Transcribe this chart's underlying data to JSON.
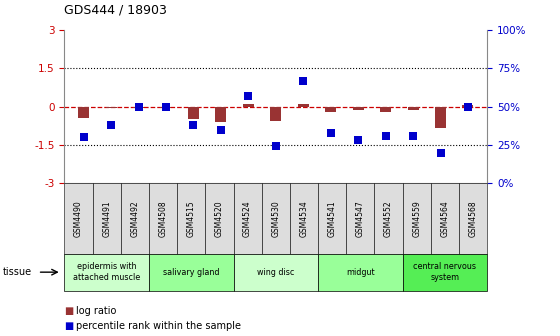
{
  "title": "GDS444 / 18903",
  "samples": [
    "GSM4490",
    "GSM4491",
    "GSM4492",
    "GSM4508",
    "GSM4515",
    "GSM4520",
    "GSM4524",
    "GSM4530",
    "GSM4534",
    "GSM4541",
    "GSM4547",
    "GSM4552",
    "GSM4559",
    "GSM4564",
    "GSM4568"
  ],
  "log_ratio": [
    -0.45,
    -0.05,
    -0.05,
    -0.05,
    -0.5,
    -0.6,
    0.1,
    -0.58,
    0.1,
    -0.2,
    -0.12,
    -0.2,
    -0.12,
    -0.85,
    0.05
  ],
  "percentile": [
    30,
    38,
    50,
    50,
    38,
    35,
    57,
    24,
    67,
    33,
    28,
    31,
    31,
    20,
    50
  ],
  "ylim_left": [
    -3,
    3
  ],
  "ylim_right": [
    0,
    100
  ],
  "dotted_lines": [
    1.5,
    -1.5
  ],
  "zero_line_color": "#cc0000",
  "bar_color": "#993333",
  "dot_color": "#0000cc",
  "tissue_groups": [
    {
      "label": "epidermis with\nattached muscle",
      "start": 0,
      "end": 2,
      "color": "#ccffcc"
    },
    {
      "label": "salivary gland",
      "start": 3,
      "end": 5,
      "color": "#99ff99"
    },
    {
      "label": "wing disc",
      "start": 6,
      "end": 8,
      "color": "#ccffcc"
    },
    {
      "label": "midgut",
      "start": 9,
      "end": 11,
      "color": "#99ff99"
    },
    {
      "label": "central nervous\nsystem",
      "start": 12,
      "end": 14,
      "color": "#55ee55"
    }
  ],
  "legend_log_ratio_label": "log ratio",
  "legend_percentile_label": "percentile rank within the sample",
  "tissue_label": "tissue",
  "bg_color": "#ffffff",
  "tick_label_color_left": "#cc0000",
  "tick_label_color_right": "#0000cc",
  "sample_box_color": "#dddddd",
  "right_ytick_labels": [
    "0%",
    "25%",
    "50%",
    "75%",
    "100%"
  ],
  "left_ytick_labels": [
    "-3",
    "-1.5",
    "0",
    "1.5",
    "3"
  ],
  "left_ytick_vals": [
    -3,
    -1.5,
    0,
    1.5,
    3
  ],
  "right_ytick_vals": [
    0,
    25,
    50,
    75,
    100
  ]
}
